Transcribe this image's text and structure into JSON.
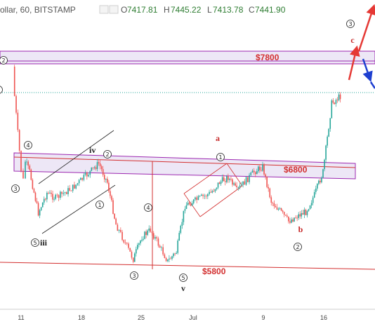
{
  "header": {
    "title": "ollar, 60, BITSTAMP",
    "ohlc": [
      {
        "k": "O",
        "v": "7417.81"
      },
      {
        "k": "H",
        "v": "7445.22"
      },
      {
        "k": "L",
        "v": "7413.78"
      },
      {
        "k": "C",
        "v": "7441.90"
      }
    ]
  },
  "colors": {
    "up": "#26a69a",
    "down": "#ef5350",
    "zone_fill": "#ede7f6",
    "zone_stroke": "#9c27b0",
    "level_red": "#d32f2f",
    "channel": "#222222",
    "arrow_red": "#e53935",
    "arrow_blue": "#1e3fd0",
    "price_line": "#26a69a"
  },
  "zones": {
    "upper_label": "$7800",
    "middle_label": "$6800",
    "lower_label": "$5800"
  },
  "waves": {
    "circled": [
      "②",
      "③",
      "④",
      "⑤",
      "①",
      "②",
      "③",
      "④",
      "⑤",
      "①",
      "②",
      "③"
    ],
    "roman": [
      "iii",
      "iv",
      "v"
    ],
    "letters": [
      "a",
      "b",
      "c"
    ]
  },
  "chart_data": {
    "type": "candlestick",
    "title": "ollar, 60, BITSTAMP",
    "last_bar": {
      "open": 7417.81,
      "high": 7445.22,
      "low": 7413.78,
      "close": 7441.9
    },
    "x_tick_labels": [
      "11",
      "18",
      "25",
      "Jul",
      "9",
      "16"
    ],
    "price_levels": [
      7800,
      6800,
      5800
    ],
    "price_path": [
      {
        "date": "Jun 10",
        "price": 7700
      },
      {
        "date": "Jun 10",
        "price": 7420
      },
      {
        "date": "Jun 11",
        "price": 6720
      },
      {
        "date": "Jun 11",
        "price": 6620
      },
      {
        "date": "Jun 11",
        "price": 6800
      },
      {
        "date": "Jun 12",
        "price": 6700
      },
      {
        "date": "Jun 13",
        "price": 6310
      },
      {
        "date": "Jun 14",
        "price": 6500
      },
      {
        "date": "Jun 15",
        "price": 6450
      },
      {
        "date": "Jun 17",
        "price": 6550
      },
      {
        "date": "Jun 19",
        "price": 6700
      },
      {
        "date": "Jun 20",
        "price": 6780
      },
      {
        "date": "Jun 21",
        "price": 6600
      },
      {
        "date": "Jun 22",
        "price": 6200
      },
      {
        "date": "Jun 24",
        "price": 5870
      },
      {
        "date": "Jun 25",
        "price": 6080
      },
      {
        "date": "Jun 26",
        "price": 6150
      },
      {
        "date": "Jun 28",
        "price": 5850
      },
      {
        "date": "Jun 29",
        "price": 5940
      },
      {
        "date": "Jun 30",
        "price": 6380
      },
      {
        "date": "Jul 1",
        "price": 6420
      },
      {
        "date": "Jul 3",
        "price": 6500
      },
      {
        "date": "Jul 4",
        "price": 6600
      },
      {
        "date": "Jul 5",
        "price": 6650
      },
      {
        "date": "Jul 6",
        "price": 6520
      },
      {
        "date": "Jul 8",
        "price": 6700
      },
      {
        "date": "Jul 9",
        "price": 6750
      },
      {
        "date": "Jul 10",
        "price": 6420
      },
      {
        "date": "Jul 11",
        "price": 6330
      },
      {
        "date": "Jul 12",
        "price": 6230
      },
      {
        "date": "Jul 13",
        "price": 6280
      },
      {
        "date": "Jul 14",
        "price": 6320
      },
      {
        "date": "Jul 15",
        "price": 6480
      },
      {
        "date": "Jul 16",
        "price": 6700
      },
      {
        "date": "Jul 17",
        "price": 7350
      },
      {
        "date": "Jul 18",
        "price": 7420
      }
    ]
  }
}
